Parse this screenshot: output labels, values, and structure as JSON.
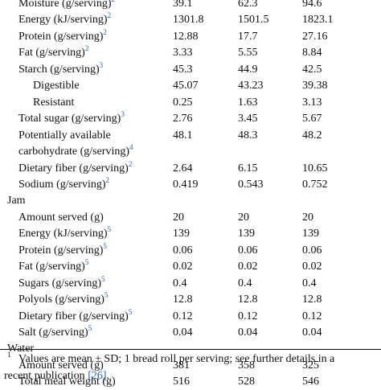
{
  "rows": [
    {
      "type": "row",
      "label": "Moisture (g/serving)",
      "sup": "2",
      "v": [
        "39.1",
        "62.3",
        "94.6"
      ]
    },
    {
      "type": "row",
      "label": "Energy (kJ/serving)",
      "sup": "2",
      "v": [
        "1301.8",
        "1501.5",
        "1823.1"
      ]
    },
    {
      "type": "row",
      "label": "Protein (g/serving)",
      "sup": "2",
      "v": [
        "12.88",
        "17.7",
        "27.16"
      ]
    },
    {
      "type": "row",
      "label": "Fat (g/serving)",
      "sup": "2",
      "v": [
        "3.33",
        "5.55",
        "8.84"
      ]
    },
    {
      "type": "row",
      "label": "Starch (g/serving)",
      "sup": "3",
      "v": [
        "45.3",
        "44.9",
        "42.5"
      ]
    },
    {
      "type": "sub",
      "label": "Digestible",
      "sup": "",
      "v": [
        "45.07",
        "43.23",
        "39.38"
      ]
    },
    {
      "type": "sub",
      "label": "Resistant",
      "sup": "",
      "v": [
        "0.25",
        "1.63",
        "3.13"
      ]
    },
    {
      "type": "row",
      "label": "Total sugar (g/serving)",
      "sup": "3",
      "v": [
        "2.76",
        "3.45",
        "5.67"
      ]
    },
    {
      "type": "row",
      "label": "Potentially available",
      "sup": "",
      "v": [
        "48.1",
        "48.3",
        "48.2"
      ]
    },
    {
      "type": "row",
      "label": "carbohydrate (g/serving)",
      "sup": "4",
      "v": [
        "",
        "",
        ""
      ]
    },
    {
      "type": "row",
      "label": "Dietary fiber (g/serving)",
      "sup": "2",
      "v": [
        "2.64",
        "6.15",
        "10.65"
      ]
    },
    {
      "type": "row",
      "label": "Sodium (g/serving)",
      "sup": "2",
      "v": [
        "0.419",
        "0.543",
        "0.752"
      ]
    },
    {
      "type": "sec",
      "label": "Jam",
      "sup": "",
      "v": [
        "",
        "",
        ""
      ]
    },
    {
      "type": "row",
      "label": "Amount served (g)",
      "sup": "",
      "v": [
        "20",
        "20",
        "20"
      ]
    },
    {
      "type": "row",
      "label": "Energy (kJ/serving)",
      "sup": "5",
      "v": [
        "139",
        "139",
        "139"
      ]
    },
    {
      "type": "row",
      "label": "Protein (g/serving)",
      "sup": "5",
      "v": [
        "0.06",
        "0.06",
        "0.06"
      ]
    },
    {
      "type": "row",
      "label": "Fat (g/serving)",
      "sup": "5",
      "v": [
        "0.02",
        "0.02",
        "0.02"
      ]
    },
    {
      "type": "row",
      "label": "Sugars (g/serving)",
      "sup": "5",
      "v": [
        "0.4",
        "0.4",
        "0.4"
      ]
    },
    {
      "type": "row",
      "label": "Polyols (g/serving)",
      "sup": "5",
      "v": [
        "12.8",
        "12.8",
        "12.8"
      ]
    },
    {
      "type": "row",
      "label": "Dietary fiber (g/serving)",
      "sup": "5",
      "v": [
        "0.12",
        "0.12",
        "0.12"
      ]
    },
    {
      "type": "row",
      "label": "Salt (g/serving)",
      "sup": "5",
      "v": [
        "0.04",
        "0.04",
        "0.04"
      ]
    },
    {
      "type": "sec",
      "label": "Water",
      "sup": "",
      "v": [
        "",
        "",
        ""
      ]
    },
    {
      "type": "row",
      "label": "Amount served (g)",
      "sup": "",
      "v": [
        "381",
        "358",
        "325"
      ]
    },
    {
      "type": "row",
      "label": "Total meal weight (g)",
      "sup": "",
      "v": [
        "516",
        "528",
        "546"
      ]
    }
  ],
  "footnote": {
    "sup": "1",
    "line1": "Values are mean ± SD; 1 bread roll per serving; see further details in a",
    "line2_pre": "recent publication ",
    "ref": "[26]",
    "line2_post": "."
  }
}
